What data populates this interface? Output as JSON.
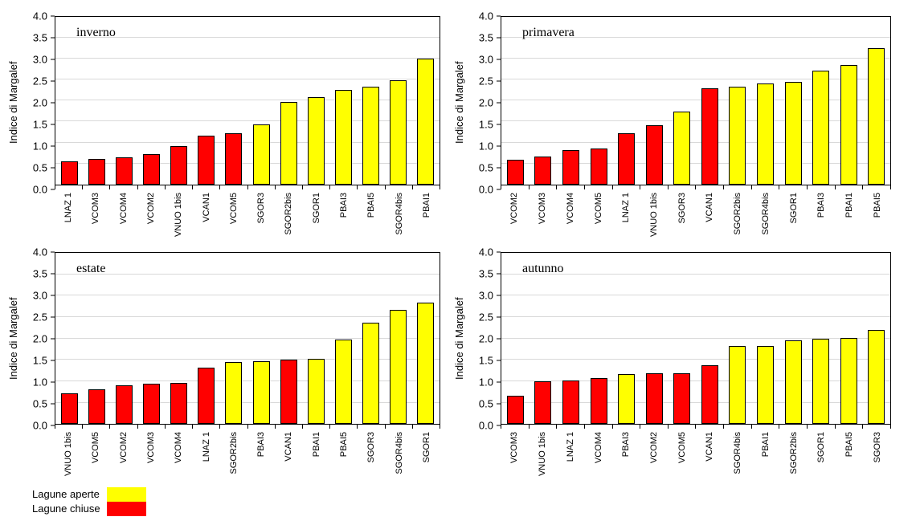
{
  "figure": {
    "background": "#FFFFFF"
  },
  "chart_style": {
    "series_colors": {
      "Lagune aperte": "#FFFF00",
      "Lagune chiuse": "#FF0000"
    },
    "bar_stroke": "#000000",
    "gridline_color": "#D9D9D9",
    "axis_color": "#000000"
  },
  "legend": {
    "position": "bottom-left",
    "items": [
      {
        "label": "Lagune aperte",
        "series": "Lagune aperte",
        "color": "#FFFF00"
      },
      {
        "label": "Lagune chiuse",
        "series": "Lagune chiuse",
        "color": "#FF0000"
      }
    ]
  },
  "chart_data": [
    {
      "type": "bar",
      "title": "inverno",
      "xlabel": "",
      "ylabel": "Indice di Margalef",
      "ylim": [
        0,
        4
      ],
      "ytick_step": 0.5,
      "ytick_decimals": 1,
      "grid": true,
      "bars": [
        {
          "category": "LNAZ 1",
          "value": 0.56,
          "series": "Lagune chiuse"
        },
        {
          "category": "VCOM3",
          "value": 0.6,
          "series": "Lagune chiuse"
        },
        {
          "category": "VCOM4",
          "value": 0.64,
          "series": "Lagune chiuse"
        },
        {
          "category": "VCOM2",
          "value": 0.73,
          "series": "Lagune chiuse"
        },
        {
          "category": "VNUO 1bis",
          "value": 0.92,
          "series": "Lagune chiuse"
        },
        {
          "category": "VCAN1",
          "value": 1.17,
          "series": "Lagune chiuse"
        },
        {
          "category": "VCOM5",
          "value": 1.22,
          "series": "Lagune chiuse"
        },
        {
          "category": "SGOR3",
          "value": 1.43,
          "series": "Lagune aperte"
        },
        {
          "category": "SGOR2bis",
          "value": 1.96,
          "series": "Lagune aperte"
        },
        {
          "category": "SGOR1",
          "value": 2.09,
          "series": "Lagune aperte"
        },
        {
          "category": "PBAI3",
          "value": 2.25,
          "series": "Lagune aperte"
        },
        {
          "category": "PBAI5",
          "value": 2.33,
          "series": "Lagune aperte"
        },
        {
          "category": "SGOR4bis",
          "value": 2.48,
          "series": "Lagune aperte"
        },
        {
          "category": "PBAI1",
          "value": 3.01,
          "series": "Lagune aperte"
        }
      ]
    },
    {
      "type": "bar",
      "title": "primavera",
      "xlabel": "",
      "ylabel": "Indice di Margalef",
      "ylim": [
        0,
        4
      ],
      "ytick_step": 0.5,
      "ytick_decimals": 1,
      "grid": true,
      "bars": [
        {
          "category": "VCOM2",
          "value": 0.58,
          "series": "Lagune chiuse"
        },
        {
          "category": "VCOM3",
          "value": 0.67,
          "series": "Lagune chiuse"
        },
        {
          "category": "VCOM4",
          "value": 0.81,
          "series": "Lagune chiuse"
        },
        {
          "category": "VCOM5",
          "value": 0.85,
          "series": "Lagune chiuse"
        },
        {
          "category": "LNAZ 1",
          "value": 1.23,
          "series": "Lagune chiuse"
        },
        {
          "category": "VNUO 1bis",
          "value": 1.42,
          "series": "Lagune chiuse"
        },
        {
          "category": "SGOR3",
          "value": 1.74,
          "series": "Lagune aperte"
        },
        {
          "category": "VCAN1",
          "value": 2.29,
          "series": "Lagune chiuse"
        },
        {
          "category": "SGOR2bis",
          "value": 2.33,
          "series": "Lagune aperte"
        },
        {
          "category": "SGOR4bis",
          "value": 2.4,
          "series": "Lagune aperte"
        },
        {
          "category": "SGOR1",
          "value": 2.44,
          "series": "Lagune aperte"
        },
        {
          "category": "PBAI3",
          "value": 2.72,
          "series": "Lagune aperte"
        },
        {
          "category": "PBAI1",
          "value": 2.85,
          "series": "Lagune aperte"
        },
        {
          "category": "PBAI5",
          "value": 3.25,
          "series": "Lagune aperte"
        }
      ]
    },
    {
      "type": "bar",
      "title": "estate",
      "xlabel": "",
      "ylabel": "Indice di Margalef",
      "ylim": [
        0,
        4
      ],
      "ytick_step": 0.5,
      "ytick_decimals": 1,
      "grid": true,
      "bars": [
        {
          "category": "VNUO 1bis",
          "value": 0.72,
          "series": "Lagune chiuse"
        },
        {
          "category": "VCOM5",
          "value": 0.81,
          "series": "Lagune chiuse"
        },
        {
          "category": "VCOM2",
          "value": 0.9,
          "series": "Lagune chiuse"
        },
        {
          "category": "VCOM3",
          "value": 0.95,
          "series": "Lagune chiuse"
        },
        {
          "category": "VCOM4",
          "value": 0.96,
          "series": "Lagune chiuse"
        },
        {
          "category": "LNAZ 1",
          "value": 1.31,
          "series": "Lagune chiuse"
        },
        {
          "category": "SGOR2bis",
          "value": 1.45,
          "series": "Lagune aperte"
        },
        {
          "category": "PBAI3",
          "value": 1.47,
          "series": "Lagune aperte"
        },
        {
          "category": "VCAN1",
          "value": 1.51,
          "series": "Lagune chiuse"
        },
        {
          "category": "PBAI1",
          "value": 1.53,
          "series": "Lagune aperte"
        },
        {
          "category": "PBAI5",
          "value": 1.97,
          "series": "Lagune aperte"
        },
        {
          "category": "SGOR3",
          "value": 2.37,
          "series": "Lagune aperte"
        },
        {
          "category": "SGOR4bis",
          "value": 2.66,
          "series": "Lagune aperte"
        },
        {
          "category": "SGOR1",
          "value": 2.83,
          "series": "Lagune aperte"
        }
      ]
    },
    {
      "type": "bar",
      "title": "autunno",
      "xlabel": "",
      "ylabel": "Indice di Margalef",
      "ylim": [
        0,
        4
      ],
      "ytick_step": 0.5,
      "ytick_decimals": 1,
      "grid": true,
      "bars": [
        {
          "category": "VCOM3",
          "value": 0.67,
          "series": "Lagune chiuse"
        },
        {
          "category": "VNUO 1bis",
          "value": 1.0,
          "series": "Lagune chiuse"
        },
        {
          "category": "LNAZ 1",
          "value": 1.02,
          "series": "Lagune chiuse"
        },
        {
          "category": "VCOM4",
          "value": 1.08,
          "series": "Lagune chiuse"
        },
        {
          "category": "PBAI3",
          "value": 1.17,
          "series": "Lagune aperte"
        },
        {
          "category": "VCOM2",
          "value": 1.19,
          "series": "Lagune chiuse"
        },
        {
          "category": "VCOM5",
          "value": 1.19,
          "series": "Lagune chiuse"
        },
        {
          "category": "VCAN1",
          "value": 1.38,
          "series": "Lagune chiuse"
        },
        {
          "category": "SGOR4bis",
          "value": 1.83,
          "series": "Lagune aperte"
        },
        {
          "category": "PBAI1",
          "value": 1.83,
          "series": "Lagune aperte"
        },
        {
          "category": "SGOR2bis",
          "value": 1.96,
          "series": "Lagune aperte"
        },
        {
          "category": "SGOR1",
          "value": 2.0,
          "series": "Lagune aperte"
        },
        {
          "category": "PBAI5",
          "value": 2.02,
          "series": "Lagune aperte"
        },
        {
          "category": "SGOR3",
          "value": 2.2,
          "series": "Lagune aperte"
        }
      ]
    }
  ]
}
